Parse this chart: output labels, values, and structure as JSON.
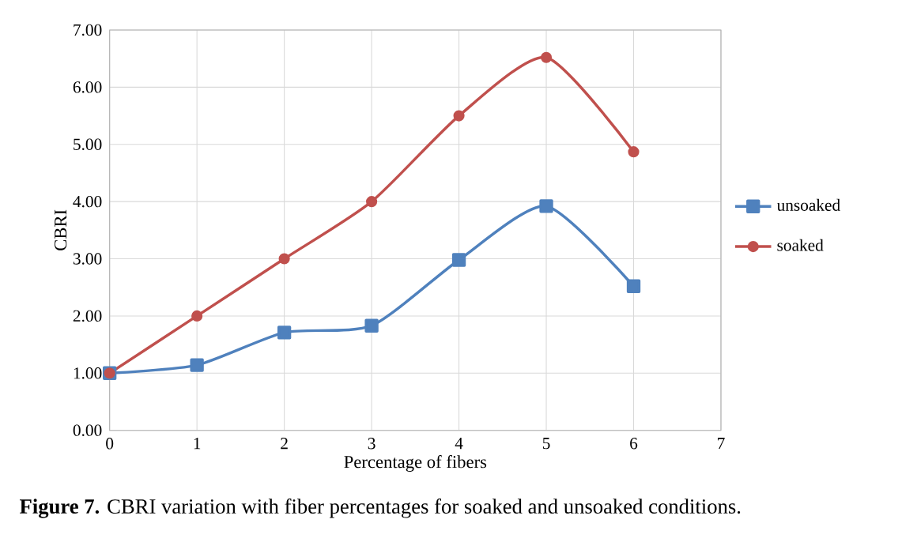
{
  "chart_data": {
    "type": "line",
    "xlabel": "Percentage of fibers",
    "ylabel": "CBRI",
    "annotations": [
      "**Figure 7.** CBRI variation with fiber percentages for soaked and unsoaked conditions."
    ],
    "x": [
      0,
      1,
      2,
      3,
      4,
      5,
      6
    ],
    "series": [
      {
        "name": "unsoaked",
        "color": "#4f81bd",
        "marker": "square",
        "values": [
          1.0,
          1.14,
          1.71,
          1.83,
          2.98,
          3.92,
          2.52
        ]
      },
      {
        "name": "soaked",
        "color": "#c0504d",
        "marker": "circle",
        "values": [
          1.0,
          2.0,
          3.0,
          4.0,
          5.5,
          6.52,
          4.87
        ]
      }
    ],
    "xlim": [
      0,
      7
    ],
    "xticks": [
      0,
      1,
      2,
      3,
      4,
      5,
      6,
      7
    ],
    "ylim": [
      0,
      7
    ],
    "yticks": [
      {
        "value": 0,
        "label": "0.00"
      },
      {
        "value": 1,
        "label": "1.00"
      },
      {
        "value": 2,
        "label": "2.00"
      },
      {
        "value": 3,
        "label": "3.00"
      },
      {
        "value": 4,
        "label": "4.00"
      },
      {
        "value": 5,
        "label": "5.00"
      },
      {
        "value": 6,
        "label": "6.00"
      },
      {
        "value": 7,
        "label": "7.00"
      }
    ],
    "grid": true,
    "legend": "right",
    "line_style": "solid"
  }
}
